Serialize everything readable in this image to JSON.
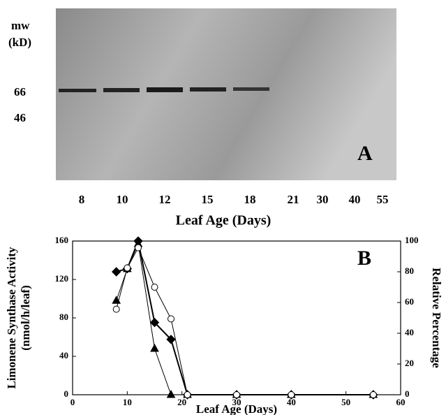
{
  "panel_a": {
    "mw_label": "mw",
    "unit_label": "(kD)",
    "markers": [
      66,
      46
    ],
    "lanes": [
      8,
      10,
      12,
      15,
      18,
      21,
      30,
      40,
      55
    ],
    "x_label": "Leaf Age (Days)",
    "panel_label": "A"
  },
  "chart_data": {
    "type": "line",
    "panel_label": "B",
    "x_label": "Leaf Age (Days)",
    "y_label": "Limonene Synthase Activity",
    "y_label_unit": "(nmol/h/leaf)",
    "y2_label": "Relative Percentage",
    "x": [
      8,
      10,
      12,
      15,
      18,
      21,
      30,
      40,
      55
    ],
    "xlim": [
      0,
      60
    ],
    "xticks": [
      0,
      10,
      20,
      30,
      40,
      50,
      60
    ],
    "ylim": [
      0,
      160
    ],
    "yticks": [
      0,
      40,
      80,
      120,
      160
    ],
    "y2lim": [
      0,
      100
    ],
    "y2ticks": [
      0,
      20,
      40,
      60,
      80,
      100
    ],
    "series": [
      {
        "color": "#000000",
        "marker": "diamond",
        "filled": true,
        "axis": "y2",
        "values": [
          80,
          82,
          100,
          47,
          36,
          0,
          0,
          0,
          0
        ]
      },
      {
        "color": "#000000",
        "marker": "triangle",
        "filled": true,
        "values": [
          98,
          131,
          157,
          48,
          0,
          0,
          0,
          0,
          0
        ]
      },
      {
        "color": "#000000",
        "marker": "circle",
        "filled": false,
        "values": [
          89,
          132,
          153,
          112,
          79,
          0,
          0,
          0,
          0
        ]
      }
    ]
  }
}
